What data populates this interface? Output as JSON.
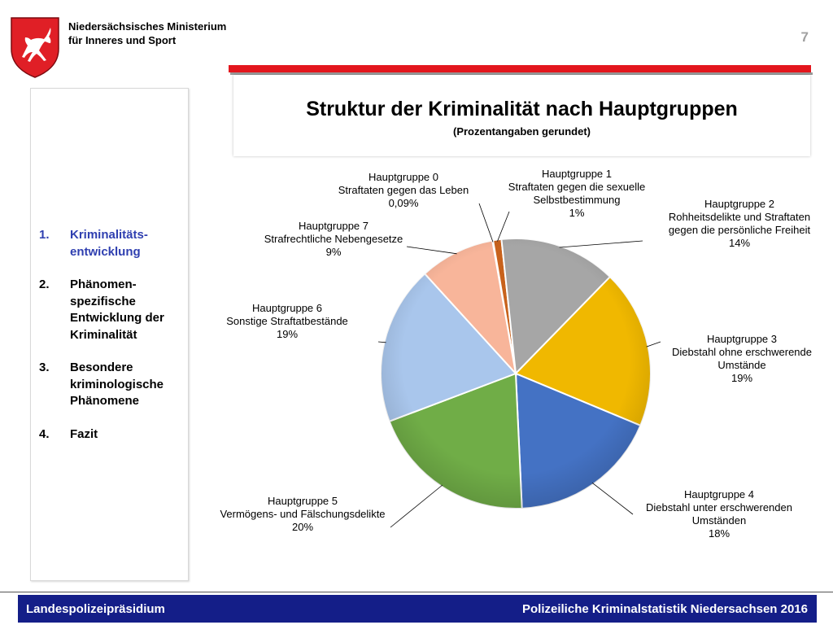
{
  "header": {
    "ministry_line1": "Niedersächsisches Ministerium",
    "ministry_line2": "für Inneres und Sport",
    "page_number": "7"
  },
  "sidebar": {
    "items": [
      {
        "num": "1.",
        "lines": [
          "Kriminalitäts-",
          "entwicklung"
        ],
        "active": true
      },
      {
        "num": "2.",
        "lines": [
          "Phänomen-",
          "spezifische",
          "Entwicklung der",
          "Kriminalität"
        ],
        "active": false
      },
      {
        "num": "3.",
        "lines": [
          "Besondere",
          "kriminologische",
          "Phänomene"
        ],
        "active": false
      },
      {
        "num": "4.",
        "lines": [
          "Fazit"
        ],
        "active": false
      }
    ]
  },
  "footer": {
    "left": "Landespolizeipräsidium",
    "right": "Polizeiliche Kriminalstatistik Niedersachsen 2016"
  },
  "colors": {
    "accent_red": "#e3161d",
    "footer_blue": "#141e88",
    "active_item": "#2f3fb0"
  },
  "chart_data": {
    "type": "pie",
    "title": "Struktur der Kriminalität nach Hauptgruppen",
    "subtitle": "(Prozentangaben gerundet)",
    "slices": [
      {
        "name": "Hauptgruppe 0",
        "desc": [
          "Straftaten gegen das Leben"
        ],
        "value": 0.09,
        "label": "0,09%",
        "color": "#4a6bbf"
      },
      {
        "name": "Hauptgruppe 1",
        "desc": [
          "Straftaten gegen die sexuelle",
          "Selbstbestimmung"
        ],
        "value": 1,
        "label": "1%",
        "color": "#c8621c"
      },
      {
        "name": "Hauptgruppe 2",
        "desc": [
          "Rohheitsdelikte und Straftaten",
          "gegen die persönliche Freiheit"
        ],
        "value": 14,
        "label": "14%",
        "color": "#a6a6a6"
      },
      {
        "name": "Hauptgruppe 3",
        "desc": [
          "Diebstahl ohne erschwerende",
          "Umstände"
        ],
        "value": 19,
        "label": "19%",
        "color": "#f0b800"
      },
      {
        "name": "Hauptgruppe 4",
        "desc": [
          "Diebstahl unter erschwerenden",
          "Umständen"
        ],
        "value": 18,
        "label": "18%",
        "color": "#4472c4"
      },
      {
        "name": "Hauptgruppe 5",
        "desc": [
          "Vermögens- und Fälschungsdelikte"
        ],
        "value": 20,
        "label": "20%",
        "color": "#70ad47"
      },
      {
        "name": "Hauptgruppe 6",
        "desc": [
          "Sonstige Straftatbestände"
        ],
        "value": 19,
        "label": "19%",
        "color": "#a9c6ec"
      },
      {
        "name": "Hauptgruppe 7",
        "desc": [
          "Strafrechtliche Nebengesetze"
        ],
        "value": 9,
        "label": "9%",
        "color": "#f8b59a"
      }
    ]
  }
}
